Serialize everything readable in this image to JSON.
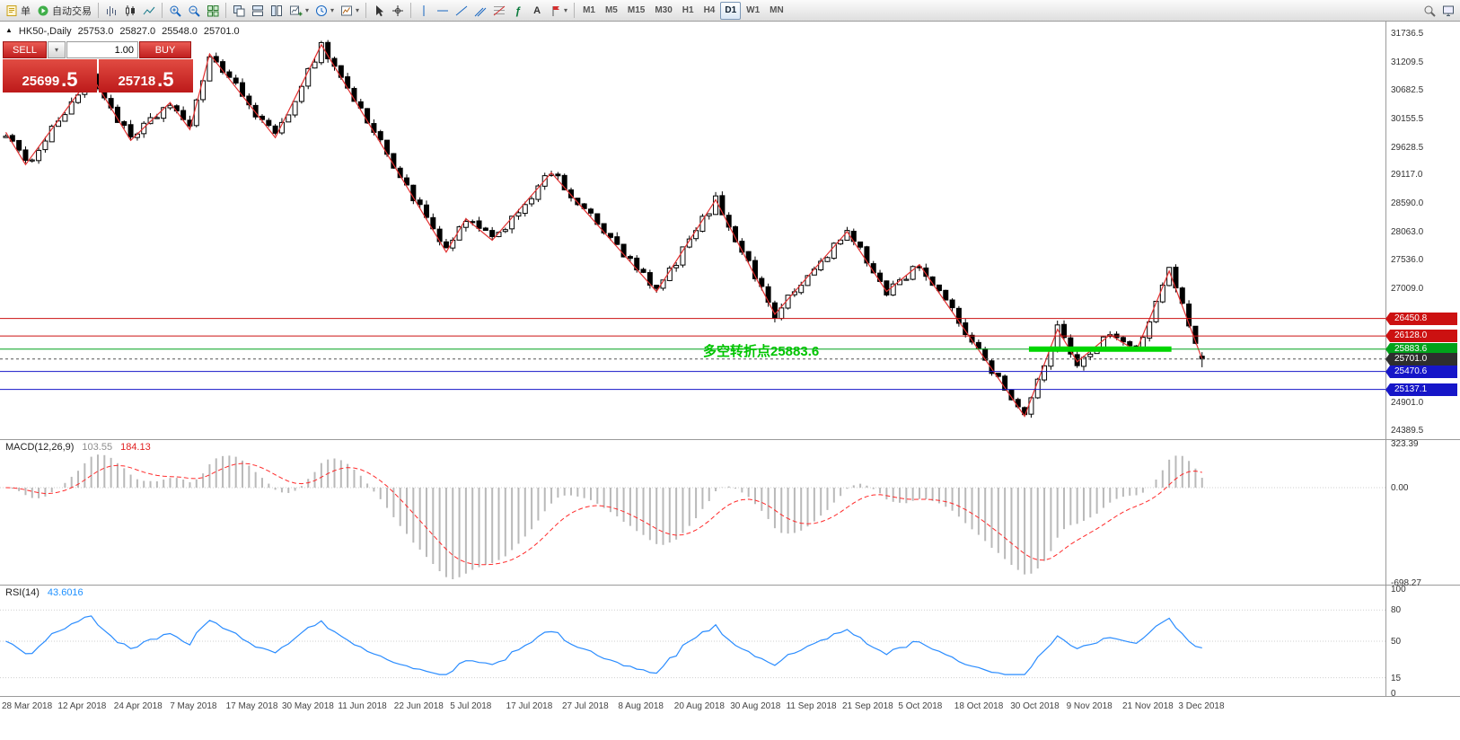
{
  "toolbar": {
    "new_order_label": "单",
    "autotrade_label": "自动交易",
    "text_tool_label": "A",
    "timeframes": [
      "M1",
      "M5",
      "M15",
      "M30",
      "H1",
      "H4",
      "D1",
      "W1",
      "MN"
    ],
    "active_timeframe": "D1"
  },
  "icons": {
    "caret_down": "▾",
    "symbol_marker": "▲",
    "function_glyph": "ƒ"
  },
  "chart": {
    "header": {
      "symbol_period": "HK50-,Daily",
      "open": "25753.0",
      "high": "25827.0",
      "low": "25548.0",
      "close": "25701.0"
    },
    "trade_panel": {
      "sell_label": "SELL",
      "buy_label": "BUY",
      "volume": "1.00",
      "sell_price_main": "25699",
      "sell_price_frac": ".5",
      "buy_price_main": "25718",
      "buy_price_frac": ".5"
    },
    "annotation": "多空转折点25883.6",
    "price_axis_ticks": [
      "31736.5",
      "31209.5",
      "30682.5",
      "30155.5",
      "29628.5",
      "29117.0",
      "28590.0",
      "28063.0",
      "27536.0",
      "27009.0",
      "24901.0",
      "24389.5"
    ],
    "price_badges": [
      {
        "label": "26450.8",
        "value": 26450.8,
        "color": "#cc1111"
      },
      {
        "label": "26128.0",
        "value": 26128.0,
        "color": "#cc1111"
      },
      {
        "label": "25883.6",
        "value": 25883.6,
        "color": "#00a21a"
      },
      {
        "label": "25701.0",
        "value": 25701.0,
        "color": "#2e2e2e"
      },
      {
        "label": "25470.6",
        "value": 25470.6,
        "color": "#1616c8"
      },
      {
        "label": "25137.1",
        "value": 25137.1,
        "color": "#1616c8"
      }
    ]
  },
  "macd": {
    "label": "MACD(12,26,9)",
    "value_main": "103.55",
    "value_signal": "184.13",
    "axis_values": [
      323.39,
      0,
      -698.27
    ],
    "axis_labels": [
      "323.39",
      "0.00",
      "-698.27"
    ]
  },
  "rsi": {
    "label": "RSI(14)",
    "value": "43.6016",
    "axis_values": [
      100,
      80,
      50,
      15,
      0
    ]
  },
  "date_axis": [
    "28 Mar 2018",
    "12 Apr 2018",
    "24 Apr 2018",
    "7 May 2018",
    "17 May 2018",
    "30 May 2018",
    "11 Jun 2018",
    "22 Jun 2018",
    "5 Jul 2018",
    "17 Jul 2018",
    "27 Jul 2018",
    "8 Aug 2018",
    "20 Aug 2018",
    "30 Aug 2018",
    "11 Sep 2018",
    "21 Sep 2018",
    "5 Oct 2018",
    "18 Oct 2018",
    "30 Oct 2018",
    "9 Nov 2018",
    "21 Nov 2018",
    "3 Dec 2018"
  ],
  "chart_data": {
    "type": "candlestick",
    "symbol": "HK50-",
    "period": "Daily",
    "bar_count": 183,
    "last_bar": {
      "open": 25753.0,
      "high": 25827.0,
      "low": 25548.0,
      "close": 25701.0
    },
    "bid": 25699.5,
    "ask": 25718.5,
    "y_axis_range": [
      24389.5,
      31736.5
    ],
    "zigzag_points": [
      [
        0,
        29900
      ],
      [
        3,
        29300
      ],
      [
        13,
        30950
      ],
      [
        19,
        29750
      ],
      [
        25,
        30450
      ],
      [
        28,
        29950
      ],
      [
        31,
        31350
      ],
      [
        41,
        29800
      ],
      [
        48,
        31520
      ],
      [
        67,
        27680
      ],
      [
        70,
        28300
      ],
      [
        74,
        27900
      ],
      [
        83,
        29150
      ],
      [
        99,
        26950
      ],
      [
        108,
        28650
      ],
      [
        117,
        26530
      ],
      [
        128,
        28060
      ],
      [
        134,
        26950
      ],
      [
        139,
        27450
      ],
      [
        155,
        24640
      ],
      [
        160,
        26250
      ],
      [
        163,
        25650
      ],
      [
        168,
        26150
      ],
      [
        172,
        25850
      ],
      [
        177,
        27330
      ],
      [
        182,
        25700
      ]
    ],
    "horizontal_levels": [
      {
        "price": 26450.8,
        "color": "#cc1111",
        "style": "solid"
      },
      {
        "price": 26128.0,
        "color": "#cc1111",
        "style": "solid"
      },
      {
        "price": 25883.6,
        "color": "#00a21a",
        "style": "solid"
      },
      {
        "price": 25701.0,
        "color": "#555555",
        "style": "dashed",
        "role": "current-price"
      },
      {
        "price": 25470.6,
        "color": "#1616c8",
        "style": "solid"
      },
      {
        "price": 25137.1,
        "color": "#1616c8",
        "style": "solid"
      }
    ],
    "highlight_segment": {
      "price": 25883.6,
      "start_index": 156,
      "end_index": 177,
      "color": "#00d600"
    },
    "annotation": {
      "text": "多空转折点25883.6",
      "price": 25950,
      "index": 107
    },
    "indicators": {
      "macd": {
        "fast": 12,
        "slow": 26,
        "signal": 9,
        "last_main": 103.55,
        "last_signal": 184.13,
        "axis_max": 323.39,
        "axis_min": -698.27
      },
      "rsi": {
        "period": 14,
        "last": 43.6016,
        "levels": [
          80,
          50,
          15
        ]
      }
    }
  }
}
